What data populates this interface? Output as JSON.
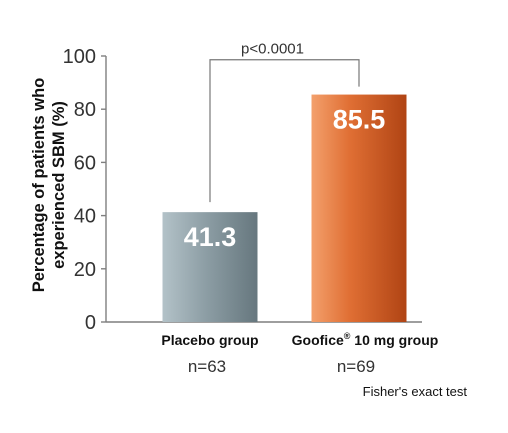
{
  "chart_data": {
    "type": "bar",
    "ylabel_lines": [
      "Percentage of patients who",
      "experienced SBM (%)"
    ],
    "ylim": [
      0,
      100
    ],
    "yticks": [
      "0",
      "20",
      "40",
      "60",
      "80",
      "100"
    ],
    "categories": [
      {
        "label": "Placebo group",
        "brand": "",
        "suffix": "",
        "n_label": "n=63"
      },
      {
        "label": "",
        "brand": "Goofice",
        "suffix": " 10 mg group",
        "n_label": "n=69"
      }
    ],
    "values": [
      41.3,
      85.5
    ],
    "value_labels": [
      "41.3",
      "85.5"
    ],
    "bar_colors": [
      "#8d9ea5",
      "#d8642c"
    ],
    "comparison": {
      "label": "p<0.0001",
      "between": [
        0,
        1
      ]
    },
    "footnote": "Fisher's exact test",
    "grid": false
  },
  "registered_mark": "®"
}
